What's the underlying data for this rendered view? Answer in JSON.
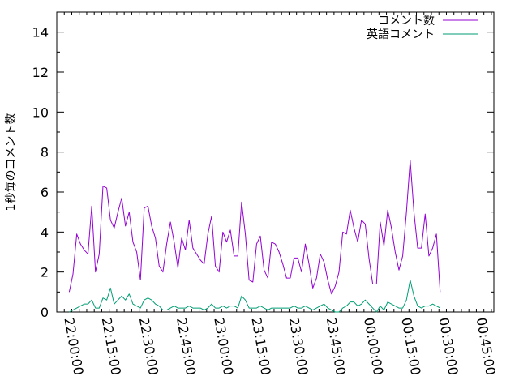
{
  "chart_data": {
    "type": "line",
    "xlabel": "",
    "ylabel": "1秒毎のコメント数",
    "ylim": [
      0,
      15
    ],
    "yticks": [
      "0",
      "2",
      "4",
      "6",
      "8",
      "10",
      "12",
      "14"
    ],
    "xlim": [
      "21:55:00",
      "00:50:00"
    ],
    "xticks": [
      "22:00:00",
      "22:15:00",
      "22:30:00",
      "22:45:00",
      "23:00:00",
      "23:15:00",
      "23:30:00",
      "23:45:00",
      "00:00:00",
      "00:15:00",
      "00:30:00",
      "00:45:00"
    ],
    "x_start": "22:00:00",
    "x_step_minutes": 1.5,
    "legend_position": "top-right",
    "grid": false,
    "series": [
      {
        "name": "コメント数",
        "color": "#9400d3",
        "values": [
          1.0,
          1.9,
          3.9,
          3.4,
          3.1,
          2.9,
          5.3,
          2.0,
          2.9,
          6.3,
          6.2,
          4.6,
          4.2,
          5.0,
          5.7,
          4.3,
          5.0,
          3.5,
          3.0,
          1.6,
          5.2,
          5.3,
          4.3,
          3.7,
          2.3,
          2.0,
          3.4,
          4.5,
          3.5,
          2.2,
          3.7,
          3.1,
          4.6,
          3.2,
          2.9,
          2.6,
          2.4,
          3.9,
          4.8,
          2.3,
          2.0,
          4.0,
          3.5,
          4.1,
          2.8,
          2.8,
          5.5,
          3.9,
          1.6,
          1.5,
          3.4,
          3.8,
          2.1,
          1.7,
          3.5,
          3.4,
          3.0,
          2.4,
          1.7,
          1.7,
          2.7,
          2.7,
          2.0,
          3.4,
          2.4,
          1.2,
          1.7,
          2.9,
          2.5,
          1.6,
          0.9,
          1.3,
          2.0,
          4.0,
          3.9,
          5.1,
          4.2,
          3.5,
          4.6,
          4.4,
          2.7,
          1.4,
          1.4,
          4.5,
          3.3,
          5.1,
          4.2,
          3.0,
          2.1,
          2.8,
          5.0,
          7.6,
          5.0,
          3.2,
          3.2,
          4.9,
          2.8,
          3.2,
          3.9,
          1.0
        ]
      },
      {
        "name": "英語コメント",
        "color": "#009e73",
        "values": [
          0.0,
          0.1,
          0.2,
          0.3,
          0.4,
          0.4,
          0.6,
          0.2,
          0.2,
          0.7,
          0.6,
          1.2,
          0.4,
          0.6,
          0.8,
          0.6,
          0.9,
          0.4,
          0.3,
          0.2,
          0.6,
          0.7,
          0.6,
          0.4,
          0.3,
          0.1,
          0.1,
          0.2,
          0.3,
          0.2,
          0.2,
          0.2,
          0.3,
          0.2,
          0.2,
          0.2,
          0.1,
          0.2,
          0.4,
          0.2,
          0.2,
          0.3,
          0.2,
          0.3,
          0.3,
          0.2,
          0.8,
          0.6,
          0.2,
          0.2,
          0.2,
          0.3,
          0.2,
          0.1,
          0.2,
          0.2,
          0.2,
          0.2,
          0.2,
          0.2,
          0.3,
          0.2,
          0.2,
          0.3,
          0.2,
          0.1,
          0.2,
          0.3,
          0.4,
          0.2,
          0.1,
          0.0,
          0.0,
          0.2,
          0.3,
          0.5,
          0.5,
          0.3,
          0.4,
          0.6,
          0.4,
          0.2,
          0.0,
          0.3,
          0.1,
          0.5,
          0.4,
          0.3,
          0.2,
          0.2,
          0.6,
          1.6,
          0.8,
          0.3,
          0.2,
          0.3,
          0.3,
          0.4,
          0.3,
          0.2
        ]
      }
    ]
  }
}
